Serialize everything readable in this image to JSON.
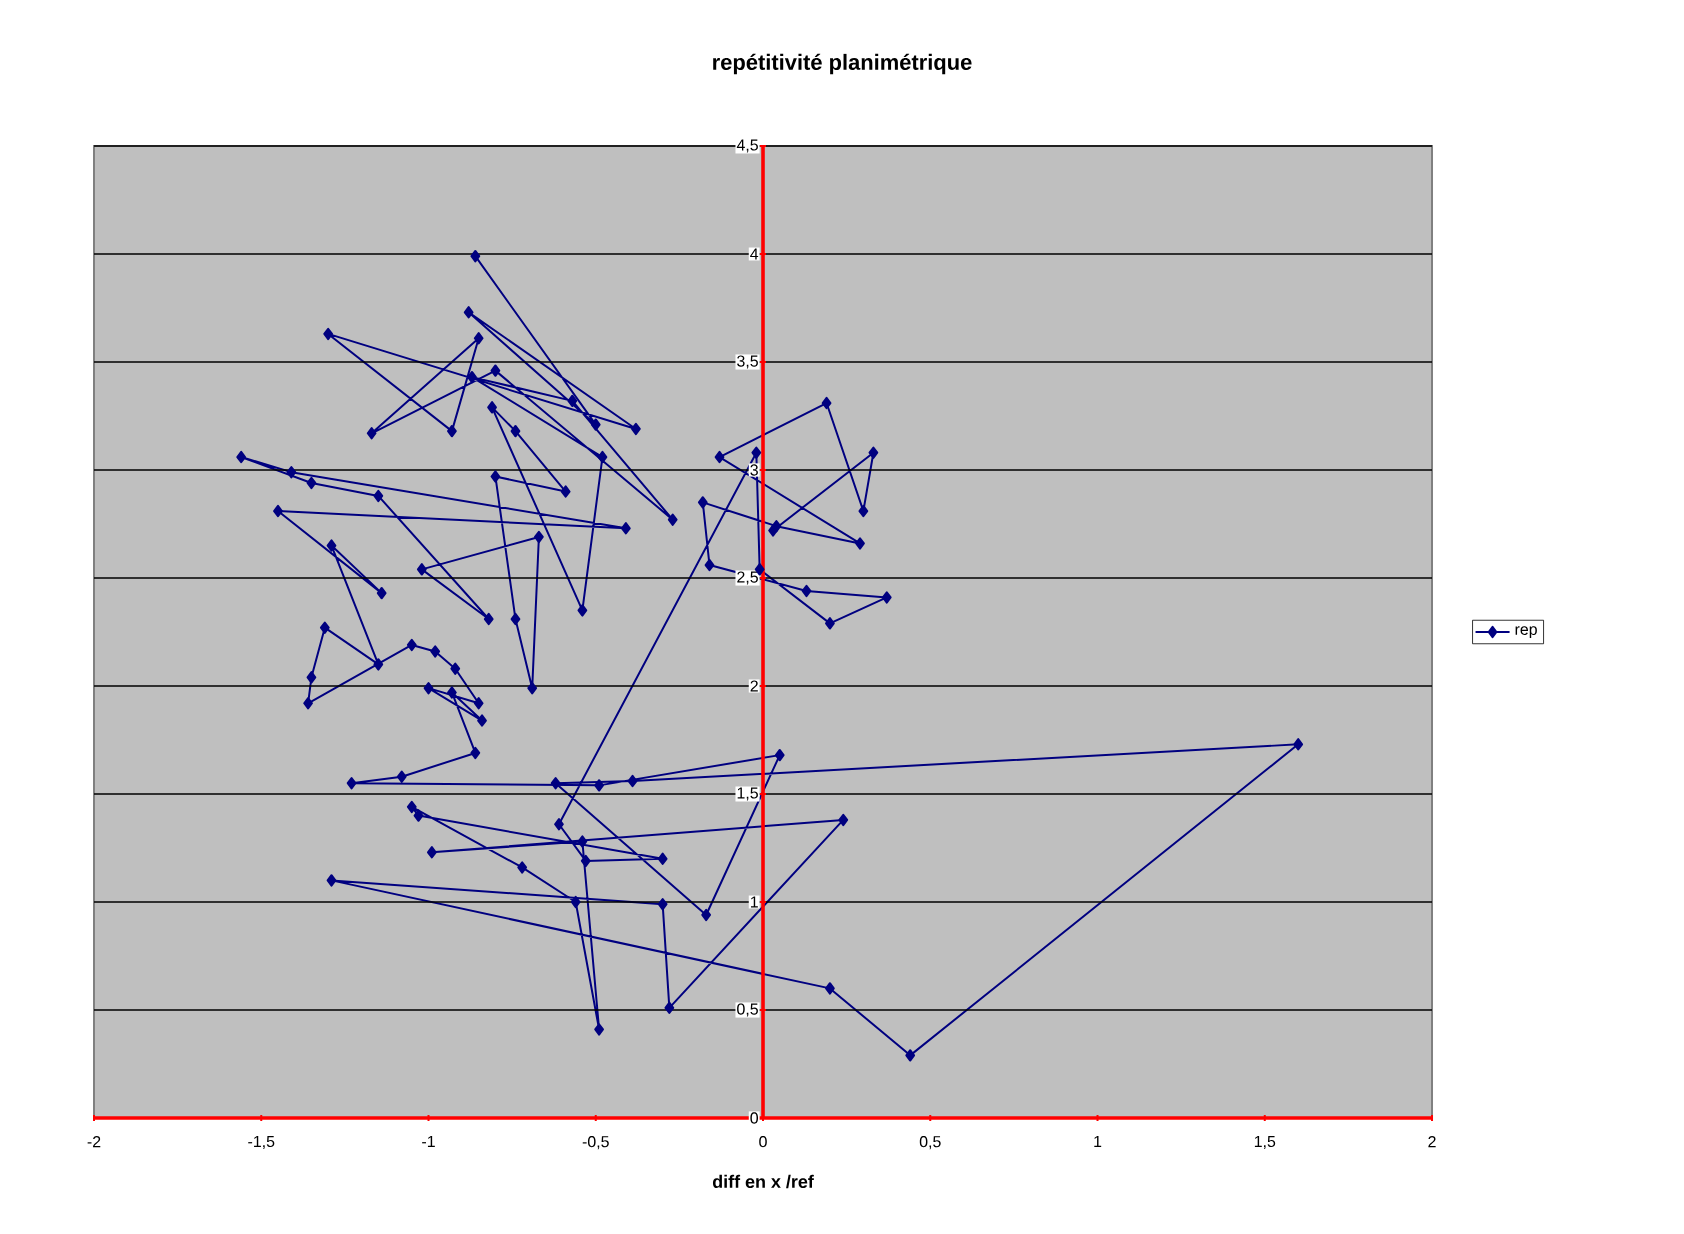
{
  "chart_data": {
    "type": "line",
    "title": "repétitivité  planimétrique",
    "xlabel": "diff en x /ref",
    "xlim": [
      -2,
      2
    ],
    "ylim": [
      0,
      4.5
    ],
    "xticks": [
      -2,
      {
        "value": -1.5,
        "label": "-1,5"
      },
      -1,
      {
        "value": -0.5,
        "label": "-0,5"
      },
      0,
      {
        "value": 0.5,
        "label": "0,5"
      },
      1,
      {
        "value": 1.5,
        "label": "1,5"
      },
      2
    ],
    "yticks": [
      0,
      {
        "value": 0.5,
        "label": "0,5"
      },
      1,
      {
        "value": 1.5,
        "label": "1,5"
      },
      2,
      {
        "value": 2.5,
        "label": "2,5"
      },
      3,
      {
        "value": 3.5,
        "label": "3,5"
      },
      4,
      {
        "value": 4.5,
        "label": "4,5"
      }
    ],
    "grid": "y",
    "legend": "right",
    "marker": "diamond",
    "line_style": "solid",
    "series": [
      {
        "name": "rep",
        "color": "#000080",
        "x": [
          -0.86,
          -0.5,
          -0.88,
          -0.38,
          -1.3,
          -0.93,
          -0.85,
          -1.17,
          -0.8,
          -0.27,
          -0.57,
          -0.87,
          -0.48,
          -0.54,
          -0.81,
          -0.74,
          -0.59,
          -0.8,
          -0.74,
          -0.69,
          -0.67,
          -1.02,
          -0.82,
          -1.15,
          -1.35,
          -1.56,
          -1.41,
          -0.41,
          -1.45,
          -1.14,
          -1.29,
          -1.15,
          -1.31,
          -1.35,
          -1.36,
          -1.05,
          -0.98,
          -0.92,
          -0.85,
          -1.0,
          -0.84,
          -0.93,
          -0.86,
          -1.08,
          -1.23,
          -0.49,
          0.05,
          -0.17,
          -0.62,
          -0.39,
          1.6,
          0.44,
          0.2,
          -1.29,
          -0.3,
          -0.28,
          0.24,
          -0.99,
          -0.54,
          -0.49,
          -0.56,
          -0.72,
          -1.05,
          -1.03,
          -0.3,
          -0.53,
          -0.61,
          -0.02,
          -0.01,
          0.2,
          0.37,
          0.13,
          -0.16,
          -0.18,
          0.04,
          0.29,
          -0.13,
          0.19,
          0.3,
          0.33,
          0.03
        ],
        "values": [
          3.99,
          3.21,
          3.73,
          3.19,
          3.63,
          3.18,
          3.61,
          3.17,
          3.46,
          2.77,
          3.32,
          3.43,
          3.06,
          2.35,
          3.29,
          3.18,
          2.9,
          2.97,
          2.31,
          1.99,
          2.69,
          2.54,
          2.31,
          2.88,
          2.94,
          3.06,
          2.99,
          2.73,
          2.81,
          2.43,
          2.65,
          2.1,
          2.27,
          2.04,
          1.92,
          2.19,
          2.16,
          2.08,
          1.92,
          1.99,
          1.84,
          1.97,
          1.69,
          1.58,
          1.55,
          1.54,
          1.68,
          0.94,
          1.55,
          1.56,
          1.73,
          0.29,
          0.6,
          1.1,
          0.99,
          0.51,
          1.38,
          1.23,
          1.28,
          0.41,
          1.0,
          1.16,
          1.44,
          1.4,
          1.2,
          1.19,
          1.36,
          3.08,
          2.54,
          2.29,
          2.41,
          2.44,
          2.56,
          2.85,
          2.74,
          2.66,
          3.06,
          3.31,
          2.81,
          3.08,
          2.72
        ]
      }
    ]
  }
}
